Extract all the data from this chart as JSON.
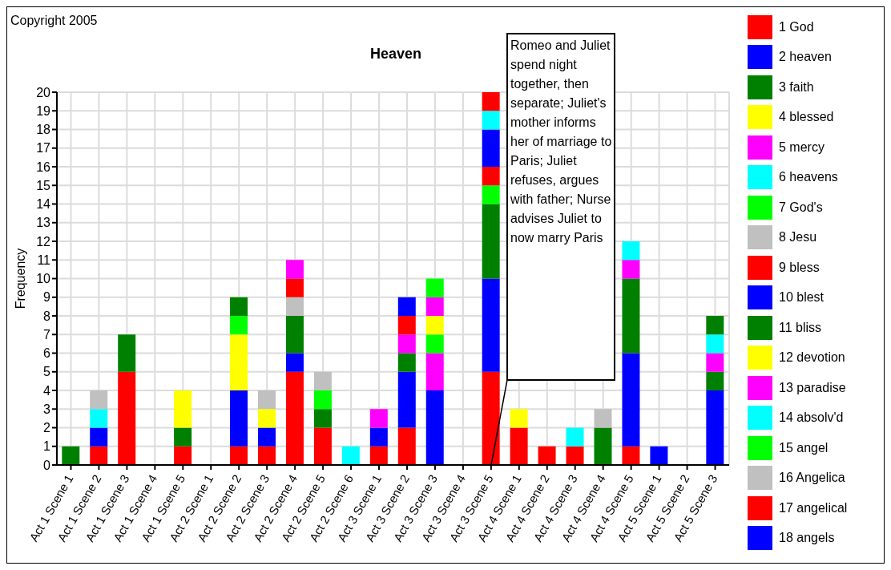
{
  "chart_data": {
    "type": "bar",
    "title": "Heaven",
    "ylabel": "Frequency",
    "stacked": true,
    "grid": true,
    "legend": "right",
    "categories": [
      "Act 1 Scene 1",
      "Act 1 Scene 2",
      "Act 1 Scene 3",
      "Act 1 Scene 4",
      "Act 1 Scene 5",
      "Act 2 Scene 1",
      "Act 2 Scene 2",
      "Act 2 Scene 3",
      "Act 2 Scene 4",
      "Act 2 Scene 5",
      "Act 2 Scene 6",
      "Act 3 Scene 1",
      "Act 3 Scene 2",
      "Act 3 Scene 3",
      "Act 3 Scene 4",
      "Act 3 Scene 5",
      "Act 4 Scene 1",
      "Act 4 Scene 2",
      "Act 4 Scene 3",
      "Act 4 Scene 4",
      "Act 4 Scene 5",
      "Act 5 Scene 1",
      "Act 5 Scene 2",
      "Act 5 Scene 3"
    ],
    "ylim": [
      0,
      20
    ],
    "yticks": [
      0,
      1,
      2,
      3,
      4,
      5,
      6,
      7,
      8,
      9,
      10,
      11,
      12,
      13,
      14,
      15,
      16,
      17,
      18,
      19,
      20
    ],
    "series": [
      {
        "name": "1 God",
        "color": "#ff0000",
        "values": [
          null,
          1,
          5,
          null,
          1,
          null,
          1,
          1,
          5,
          2,
          null,
          1,
          2,
          null,
          null,
          5,
          2,
          1,
          1,
          null,
          1,
          null,
          null,
          null
        ]
      },
      {
        "name": "2 heaven",
        "color": "#0000ff",
        "values": [
          null,
          1,
          null,
          null,
          null,
          null,
          3,
          1,
          1,
          null,
          null,
          1,
          3,
          4,
          null,
          5,
          null,
          null,
          null,
          null,
          5,
          1,
          null,
          4
        ]
      },
      {
        "name": "3 faith",
        "color": "#008000",
        "values": [
          1,
          null,
          2,
          null,
          1,
          null,
          null,
          null,
          2,
          1,
          null,
          null,
          1,
          null,
          null,
          4,
          null,
          null,
          null,
          2,
          4,
          null,
          null,
          1
        ]
      },
      {
        "name": "4 blessed",
        "color": "#ffff00",
        "values": [
          null,
          null,
          null,
          null,
          2,
          null,
          3,
          1,
          null,
          null,
          null,
          null,
          null,
          null,
          null,
          null,
          1,
          null,
          null,
          null,
          null,
          null,
          null,
          null
        ]
      },
      {
        "name": "5 mercy",
        "color": "#ff00ff",
        "values": [
          null,
          null,
          null,
          null,
          null,
          null,
          null,
          null,
          null,
          null,
          null,
          1,
          1,
          2,
          null,
          null,
          null,
          null,
          null,
          null,
          1,
          null,
          null,
          1
        ]
      },
      {
        "name": "6 heavens",
        "color": "#00ffff",
        "values": [
          null,
          1,
          null,
          null,
          null,
          null,
          null,
          null,
          null,
          null,
          1,
          null,
          null,
          null,
          null,
          null,
          null,
          null,
          1,
          null,
          1,
          null,
          null,
          1
        ]
      },
      {
        "name": "7 God's",
        "color": "#00ff00",
        "values": [
          null,
          null,
          null,
          null,
          null,
          null,
          1,
          null,
          null,
          1,
          null,
          null,
          null,
          1,
          null,
          1,
          null,
          null,
          null,
          null,
          null,
          null,
          null,
          null
        ]
      },
      {
        "name": "8 Jesu",
        "color": "#c0c0c0",
        "values": [
          null,
          1,
          null,
          null,
          null,
          null,
          null,
          1,
          1,
          1,
          null,
          null,
          null,
          null,
          null,
          null,
          null,
          null,
          null,
          1,
          null,
          null,
          null,
          null
        ]
      },
      {
        "name": "9 bless",
        "color": "#ff0000",
        "values": [
          null,
          null,
          null,
          null,
          null,
          null,
          null,
          null,
          1,
          null,
          null,
          null,
          1,
          null,
          null,
          1,
          null,
          null,
          null,
          null,
          null,
          null,
          null,
          null
        ]
      },
      {
        "name": "10 blest",
        "color": "#0000ff",
        "values": [
          null,
          null,
          null,
          null,
          null,
          null,
          null,
          null,
          null,
          null,
          null,
          null,
          1,
          null,
          null,
          2,
          null,
          null,
          null,
          null,
          null,
          null,
          null,
          null
        ]
      },
      {
        "name": "11 bliss",
        "color": "#008000",
        "values": [
          null,
          null,
          null,
          null,
          null,
          null,
          1,
          null,
          null,
          null,
          null,
          null,
          null,
          null,
          null,
          null,
          null,
          null,
          null,
          null,
          null,
          null,
          null,
          1
        ]
      },
      {
        "name": "12 devotion",
        "color": "#ffff00",
        "values": [
          null,
          null,
          null,
          null,
          null,
          null,
          null,
          null,
          null,
          null,
          null,
          null,
          null,
          1,
          null,
          null,
          null,
          null,
          null,
          null,
          null,
          null,
          null,
          null
        ]
      },
      {
        "name": "13 paradise",
        "color": "#ff00ff",
        "values": [
          null,
          null,
          null,
          null,
          null,
          null,
          null,
          null,
          1,
          null,
          null,
          null,
          null,
          1,
          null,
          null,
          null,
          null,
          null,
          null,
          null,
          null,
          null,
          null
        ]
      },
      {
        "name": "14 absolv'd",
        "color": "#00ffff",
        "values": [
          null,
          null,
          null,
          null,
          null,
          null,
          null,
          null,
          null,
          null,
          null,
          null,
          null,
          null,
          null,
          1,
          null,
          null,
          null,
          null,
          null,
          null,
          null,
          null
        ]
      },
      {
        "name": "15 angel",
        "color": "#00ff00",
        "values": [
          null,
          null,
          null,
          null,
          null,
          null,
          null,
          null,
          null,
          null,
          null,
          null,
          null,
          1,
          null,
          null,
          null,
          null,
          null,
          null,
          null,
          null,
          null,
          null
        ]
      },
      {
        "name": "16 Angelica",
        "color": "#c0c0c0",
        "values": [
          null,
          null,
          null,
          null,
          null,
          null,
          null,
          null,
          null,
          null,
          null,
          null,
          null,
          null,
          null,
          null,
          null,
          null,
          null,
          null,
          null,
          null,
          null,
          null
        ]
      },
      {
        "name": "17 angelical",
        "color": "#ff0000",
        "values": [
          null,
          null,
          null,
          null,
          null,
          null,
          null,
          null,
          null,
          null,
          null,
          null,
          null,
          null,
          null,
          1,
          null,
          null,
          null,
          null,
          null,
          null,
          null,
          null
        ]
      },
      {
        "name": "18 angels",
        "color": "#0000ff",
        "values": [
          null,
          null,
          null,
          null,
          null,
          null,
          null,
          null,
          null,
          null,
          null,
          null,
          null,
          null,
          null,
          null,
          null,
          null,
          null,
          null,
          null,
          null,
          null,
          null
        ]
      }
    ],
    "annotations": [
      "Copyright 2005",
      "Romeo and Juliet spend night together, then separate; Juliet's mother informs her of marriage to Paris; Juliet refuses, argues with father; Nurse advises Juliet to now marry Paris"
    ]
  }
}
